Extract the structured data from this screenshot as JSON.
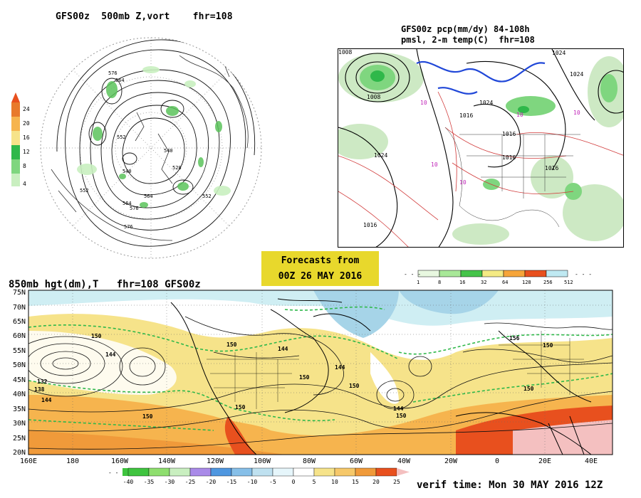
{
  "panel1": {
    "title": "GFS00z  500mb Z,vort    fhr=108",
    "scale": [
      "24",
      "20",
      "16",
      "12",
      "8",
      "4"
    ],
    "contour_labels": [
      "576",
      "564",
      "552",
      "540",
      "528",
      "552",
      "564",
      "576",
      "588",
      "540",
      "552",
      "564",
      "576",
      "588"
    ]
  },
  "panel2": {
    "title_line1": "GFS00z pcp(mm/dy) 84-108h",
    "title_line2": "pmsl, 2-m temp(C)  fhr=108",
    "scale": [
      "1",
      "8",
      "16",
      "32",
      "64",
      "128",
      "256",
      "512"
    ],
    "labels": [
      "1008",
      "1016",
      "1024",
      "1016",
      "1024",
      "1024",
      "1008",
      "1016",
      "1016",
      "1016",
      "10",
      "10",
      "10",
      "10",
      "10",
      "1024"
    ]
  },
  "banner": {
    "line1": "Forecasts from",
    "line2": "00Z 26 MAY 2016"
  },
  "panel3": {
    "title": "850mb hgt(dm),T   fhr=108 GFS00z",
    "lat_labels": [
      "75N",
      "70N",
      "65N",
      "60N",
      "55N",
      "50N",
      "45N",
      "40N",
      "35N",
      "30N",
      "25N",
      "20N"
    ],
    "lon_labels": [
      "160E",
      "180",
      "160W",
      "140W",
      "120W",
      "100W",
      "80W",
      "60W",
      "40W",
      "20W",
      "0",
      "20E",
      "40E"
    ],
    "contour_labels": [
      "150",
      "144",
      "132",
      "138",
      "144",
      "150",
      "150",
      "144",
      "150",
      "144",
      "150",
      "150",
      "156",
      "150",
      "150"
    ],
    "temp_scale": [
      "-40",
      "-35",
      "-30",
      "-25",
      "-20",
      "-15",
      "-10",
      "-5",
      "0",
      "5",
      "10",
      "15",
      "20",
      "25"
    ]
  },
  "verif": "verif time: Mon 30 MAY 2016 12Z",
  "colors": {
    "banner": "#e8d82c",
    "warm": "#f6b44e",
    "hot": "#e8501e",
    "cold": "#cfeef3"
  }
}
